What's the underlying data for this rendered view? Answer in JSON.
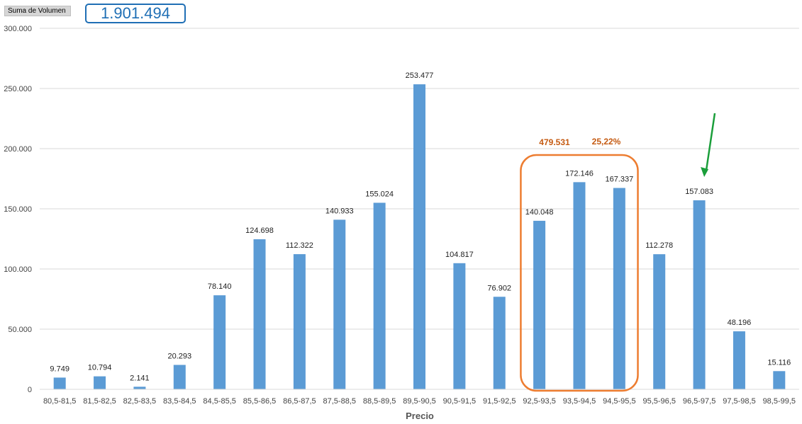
{
  "pivot": {
    "field_button": "Suma de Volumen",
    "total": "1.901.494"
  },
  "annotations": {
    "group_sum": "479.531",
    "group_pct": "25,22%",
    "highlight_color": "#ed7d31",
    "arrow_color": "#1a9e3a"
  },
  "chart_data": {
    "type": "bar",
    "xlabel": "Precio",
    "ylabel": "",
    "ylim": [
      0,
      300000
    ],
    "yticks": [
      "0",
      "50.000",
      "100.000",
      "150.000",
      "200.000",
      "250.000",
      "300.000"
    ],
    "bar_color": "#5b9bd5",
    "grid": true,
    "categories": [
      "80,5-81,5",
      "81,5-82,5",
      "82,5-83,5",
      "83,5-84,5",
      "84,5-85,5",
      "85,5-86,5",
      "86,5-87,5",
      "87,5-88,5",
      "88,5-89,5",
      "89,5-90,5",
      "90,5-91,5",
      "91,5-92,5",
      "92,5-93,5",
      "93,5-94,5",
      "94,5-95,5",
      "95,5-96,5",
      "96,5-97,5",
      "97,5-98,5",
      "98,5-99,5"
    ],
    "values": [
      9749,
      10794,
      2141,
      20293,
      78140,
      124698,
      112322,
      140933,
      155024,
      253477,
      104817,
      76902,
      140048,
      172146,
      167337,
      112278,
      157083,
      48196,
      15116
    ],
    "labels": [
      "9.749",
      "10.794",
      "2.141",
      "20.293",
      "78.140",
      "124.698",
      "112.322",
      "140.933",
      "155.024",
      "253.477",
      "104.817",
      "76.902",
      "140.048",
      "172.146",
      "167.337",
      "112.278",
      "157.083",
      "48.196",
      "15.116"
    ],
    "highlight_range": [
      "92,5-93,5",
      "94,5-95,5"
    ],
    "arrow_target": "96,5-97,5"
  }
}
